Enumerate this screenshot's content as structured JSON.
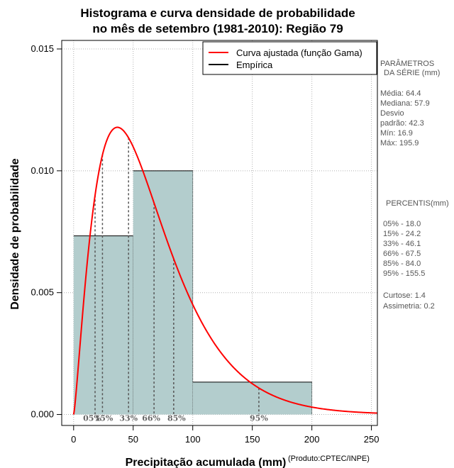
{
  "chart_data": {
    "type": "histogram",
    "title_line1": "Histograma e curva densidade de probabilidade",
    "title_line2": "no mês de setembro (1981-2010): Região 79",
    "xlabel": "Precipitação acumulada (mm)",
    "ylabel": "Densidade de probabilidade",
    "credit": "(Produto:CPTEC/INPE)",
    "xlim": [
      -10,
      255
    ],
    "ylim": [
      -0.00045,
      0.01535
    ],
    "x_ticks": [
      0,
      50,
      100,
      150,
      200,
      250
    ],
    "x_tick_labels": [
      "0",
      "50",
      "100",
      "150",
      "200",
      "250"
    ],
    "y_ticks": [
      0.0,
      0.005,
      0.01,
      0.015
    ],
    "y_tick_labels": [
      "0.000",
      "0.005",
      "0.010",
      "0.015"
    ],
    "bins": [
      {
        "from": 0,
        "to": 50,
        "density": 0.00733
      },
      {
        "from": 50,
        "to": 100,
        "density": 0.01
      },
      {
        "from": 100,
        "to": 200,
        "density": 0.00133
      }
    ],
    "gamma_fit": {
      "shape": 2.33,
      "scale": 27.6
    },
    "percentiles": [
      {
        "label": "05%",
        "x": 18.0
      },
      {
        "label": "15%",
        "x": 24.2
      },
      {
        "label": "33%",
        "x": 46.1
      },
      {
        "label": "66%",
        "x": 67.5
      },
      {
        "label": "85%",
        "x": 84.0
      },
      {
        "label": "95%",
        "x": 155.5
      }
    ],
    "legend": [
      {
        "label": "Curva ajustada (função Gama)",
        "color": "#ff0000"
      },
      {
        "label": "Empírica",
        "color": "#000000"
      }
    ],
    "colors": {
      "bar_fill": "#b3cdcd",
      "curve": "#ff0000",
      "grid": "#b0b0b0",
      "percentile_line": "#555555"
    }
  },
  "side_panel": {
    "params_title_1": "PARÂMETROS",
    "params_title_2": "DA SÉRIE (mm)",
    "stats": [
      "Média:  64.4",
      "Mediana:  57.9",
      "Desvio",
      "padrão:  42.3",
      "Mín:  16.9",
      "Máx:  195.9"
    ],
    "percentis_title": "PERCENTIS(mm)",
    "percentis": [
      "05% -  18.0",
      "15% -  24.2",
      "33% -  46.1",
      "66% -  67.5",
      "85% -  84.0",
      "95% -  155.5"
    ],
    "extra": [
      "Curtose:  1.4",
      "Assimetria:  0.2"
    ]
  }
}
